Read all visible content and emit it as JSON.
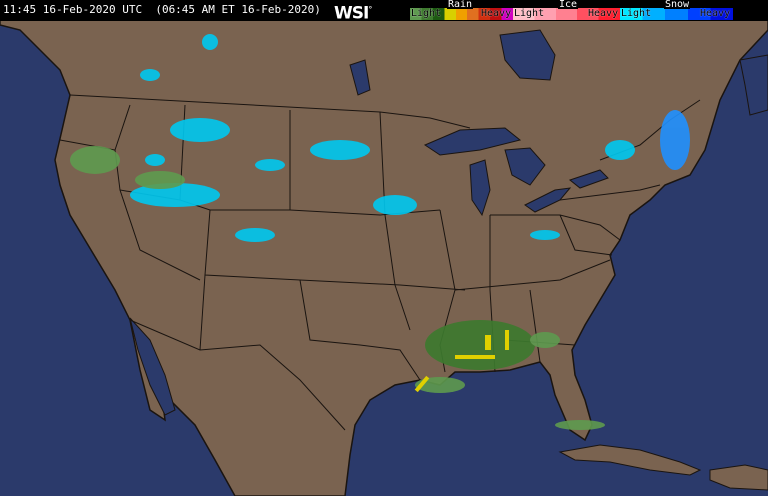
{
  "header": {
    "timestamp": "11:45 16-Feb-2020 UTC  (06:45 AM ET 16-Feb-2020)",
    "logo": "WSI",
    "logo_mark": "°"
  },
  "legend": {
    "rain": {
      "title": "Rain",
      "light": "Light",
      "heavy": "Heavy",
      "colors": [
        "#5e9a4f",
        "#3d7a2e",
        "#1d5a12",
        "#d8d000",
        "#f0a000",
        "#e07020",
        "#d03010",
        "#c01010",
        "#d000c0"
      ]
    },
    "ice": {
      "title": "Ice",
      "light": "Light",
      "heavy": "Heavy",
      "colors": [
        "#ffc0c8",
        "#ffa0b0",
        "#ff8090",
        "#ff5060",
        "#ff2030"
      ]
    },
    "snow": {
      "title": "Snow",
      "light": "Light",
      "heavy": "Heavy",
      "colors": [
        "#00e8ff",
        "#00b0ff",
        "#0080ff",
        "#0040ff",
        "#0010e0"
      ]
    }
  },
  "map": {
    "land_color": "#7a6350",
    "water_color": "#2b3a6b",
    "border_color": "#1a1410"
  }
}
